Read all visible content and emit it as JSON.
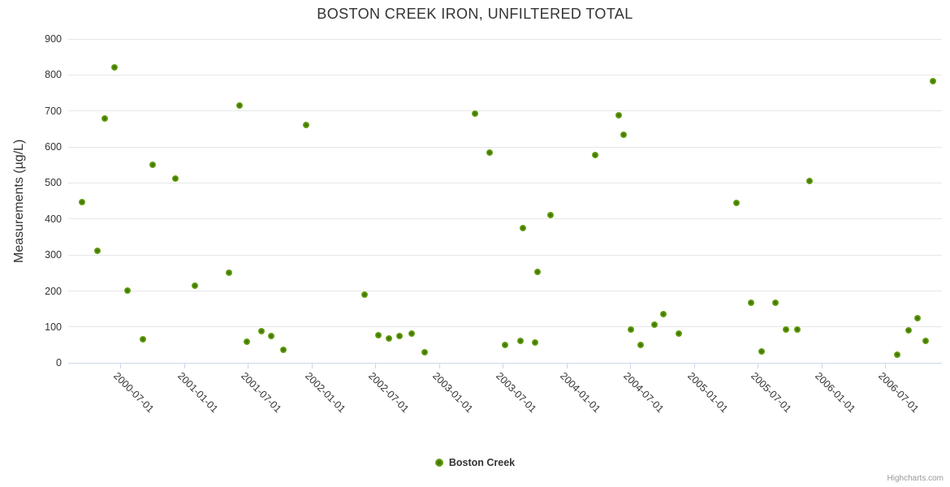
{
  "title": "BOSTON CREEK IRON, UNFILTERED TOTAL",
  "legend": {
    "series_label": "Boston Creek"
  },
  "credits": "Highcharts.com",
  "colors": {
    "title_text": "#333333",
    "axis_label_text": "#333333",
    "gridline": "#e6e6e6",
    "axis_line": "#ccd6eb",
    "marker_green": "#6faa10",
    "credits_text": "#999999"
  },
  "chart_data": {
    "type": "scatter",
    "title": "BOSTON CREEK IRON, UNFILTERED TOTAL",
    "xlabel": "",
    "ylabel": "Measurements (µg/L)",
    "ylim": [
      0,
      900
    ],
    "grid": "horizontal",
    "legend_position": "bottom-center",
    "y_ticks": [
      0,
      100,
      200,
      300,
      400,
      500,
      600,
      700,
      800,
      900
    ],
    "x_ticks": [
      "2000-07-01",
      "2001-01-01",
      "2001-07-01",
      "2002-01-01",
      "2002-07-01",
      "2003-01-01",
      "2003-07-01",
      "2004-01-01",
      "2004-07-01",
      "2005-01-01",
      "2005-07-01",
      "2006-01-01",
      "2006-07-01"
    ],
    "series": [
      {
        "name": "Boston Creek",
        "points": [
          [
            "2000-03-13",
            447
          ],
          [
            "2000-04-28",
            311
          ],
          [
            "2000-05-18",
            678
          ],
          [
            "2000-06-15",
            820
          ],
          [
            "2000-07-21",
            202
          ],
          [
            "2000-09-04",
            65
          ],
          [
            "2000-10-01",
            551
          ],
          [
            "2000-12-06",
            512
          ],
          [
            "2001-01-31",
            215
          ],
          [
            "2001-05-08",
            250
          ],
          [
            "2001-06-07",
            715
          ],
          [
            "2001-06-28",
            59
          ],
          [
            "2001-08-09",
            88
          ],
          [
            "2001-09-07",
            76
          ],
          [
            "2001-10-11",
            37
          ],
          [
            "2001-12-16",
            662
          ],
          [
            "2002-06-01",
            189
          ],
          [
            "2002-07-10",
            78
          ],
          [
            "2002-08-09",
            68
          ],
          [
            "2002-09-09",
            76
          ],
          [
            "2002-10-15",
            82
          ],
          [
            "2002-11-21",
            29
          ],
          [
            "2003-04-13",
            693
          ],
          [
            "2003-05-25",
            585
          ],
          [
            "2003-07-08",
            50
          ],
          [
            "2003-08-21",
            61
          ],
          [
            "2003-08-28",
            375
          ],
          [
            "2003-10-03",
            58
          ],
          [
            "2003-10-09",
            252
          ],
          [
            "2003-11-15",
            411
          ],
          [
            "2004-03-22",
            578
          ],
          [
            "2004-05-28",
            687
          ],
          [
            "2004-06-11",
            634
          ],
          [
            "2004-07-04",
            92
          ],
          [
            "2004-08-01",
            51
          ],
          [
            "2004-09-09",
            106
          ],
          [
            "2004-10-05",
            136
          ],
          [
            "2004-11-18",
            82
          ],
          [
            "2005-05-02",
            444
          ],
          [
            "2005-06-13",
            167
          ],
          [
            "2005-07-12",
            32
          ],
          [
            "2005-08-22",
            168
          ],
          [
            "2005-09-21",
            92
          ],
          [
            "2005-10-22",
            94
          ],
          [
            "2005-11-27",
            506
          ],
          [
            "2006-08-06",
            23
          ],
          [
            "2006-09-06",
            90
          ],
          [
            "2006-10-02",
            124
          ],
          [
            "2006-10-25",
            61
          ],
          [
            "2006-11-16",
            782
          ]
        ]
      }
    ]
  }
}
